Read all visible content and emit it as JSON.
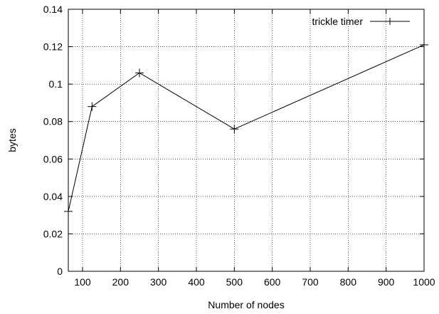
{
  "chart_data": {
    "type": "line",
    "title": "",
    "xlabel": "Number of nodes",
    "ylabel": "bytes",
    "xlim": [
      62.5,
      1000
    ],
    "ylim": [
      0,
      0.14
    ],
    "xticks": [
      100,
      200,
      300,
      400,
      500,
      600,
      700,
      800,
      900,
      1000
    ],
    "yticks": [
      0,
      0.02,
      0.04,
      0.06,
      0.08,
      0.1,
      0.12,
      0.14
    ],
    "xtick_labels": [
      "100",
      "200",
      "300",
      "400",
      "500",
      "600",
      "700",
      "800",
      "900",
      "1000"
    ],
    "ytick_labels": [
      "0",
      "0.02",
      "0.04",
      "0.06",
      "0.08",
      "0.1",
      "0.12",
      "0.14"
    ],
    "grid": true,
    "legend_position": "top-right",
    "series": [
      {
        "name": "trickle timer",
        "marker": "plus",
        "color": "#000000",
        "x": [
          62.5,
          125,
          250,
          500,
          1000
        ],
        "y": [
          0.032,
          0.088,
          0.106,
          0.076,
          0.121
        ]
      }
    ]
  }
}
